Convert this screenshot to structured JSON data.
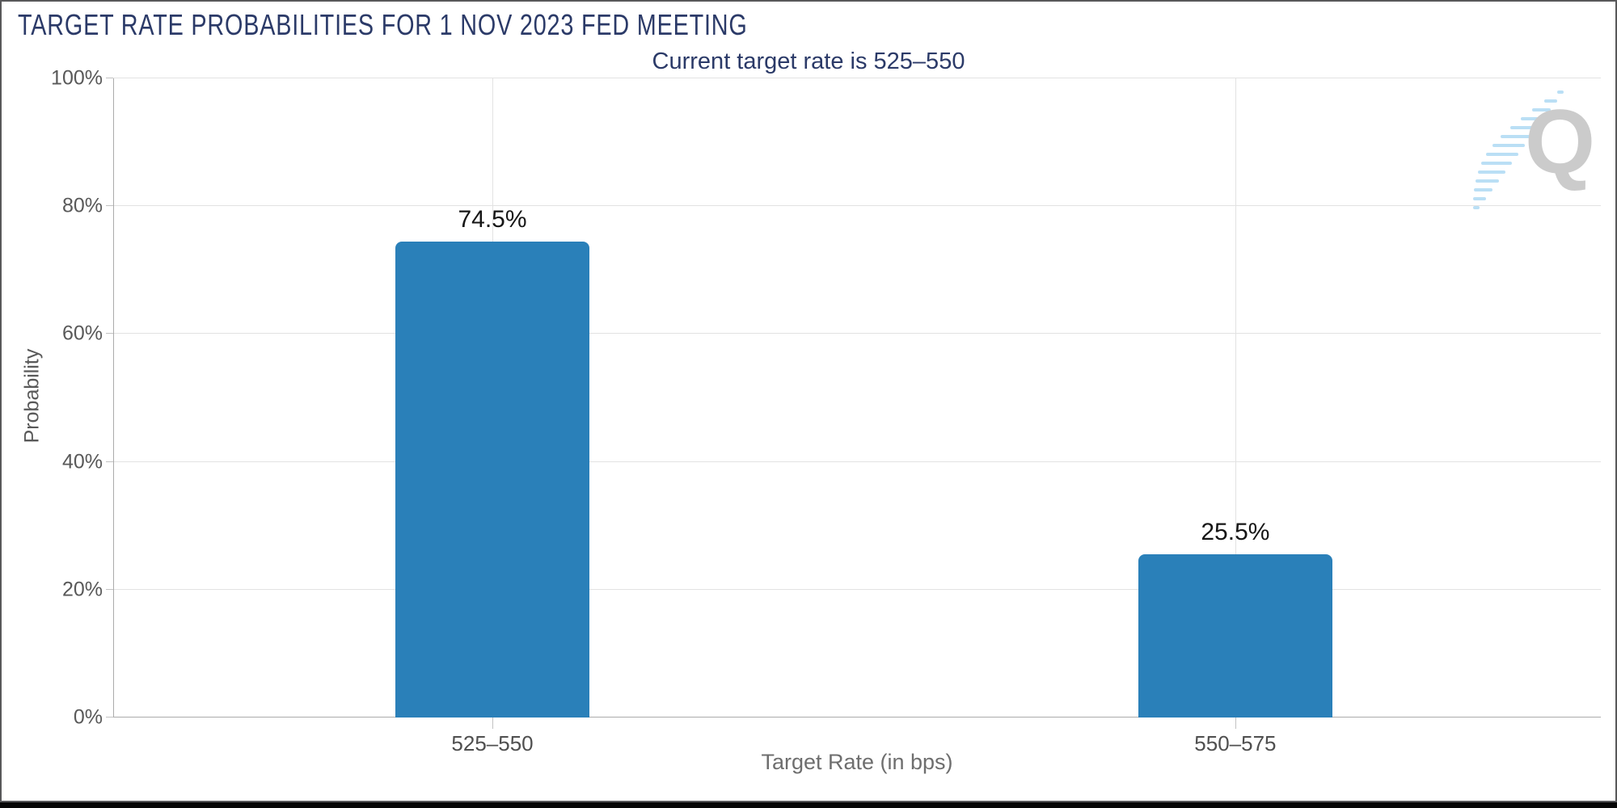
{
  "chart_data": {
    "type": "bar",
    "title": "TARGET RATE PROBABILITIES FOR 1 NOV 2023 FED MEETING",
    "subtitle": "Current target rate is 525–550",
    "categories": [
      "525–550",
      "550–575"
    ],
    "values": [
      74.5,
      25.5
    ],
    "value_labels": [
      "74.5%",
      "25.5%"
    ],
    "xlabel": "Target Rate (in bps)",
    "ylabel": "Probability",
    "ylim": [
      0,
      100
    ],
    "ytick_values": [
      0,
      20,
      40,
      60,
      80,
      100
    ],
    "ytick_labels": [
      "0%",
      "20%",
      "40%",
      "60%",
      "80%",
      "100%"
    ],
    "grid": true,
    "legend": false,
    "colors": {
      "bar": "#2a80b9",
      "title": "#2b3a68",
      "axis_label": "#595959",
      "value_label": "#161616",
      "gridline": "#e2e2e2",
      "axis_line": "#ababab"
    },
    "watermark": {
      "letter": "Q",
      "letter_color": "#cbcbcb",
      "streak_color": "#badff5"
    }
  }
}
